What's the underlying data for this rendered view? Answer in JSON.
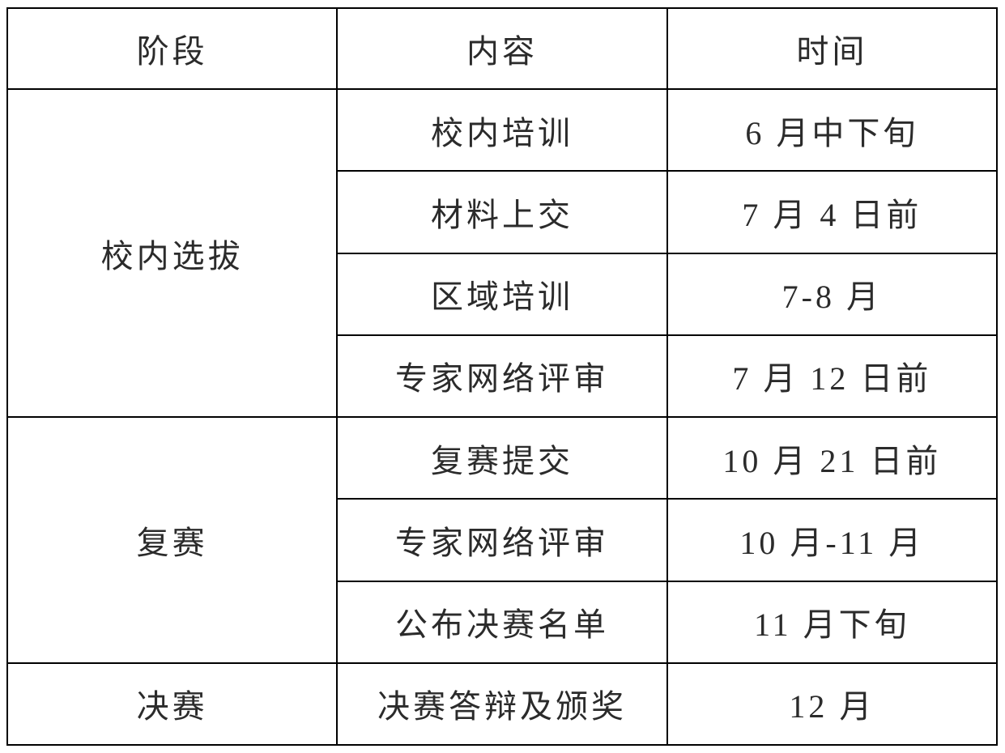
{
  "table": {
    "headers": [
      {
        "label": "阶段"
      },
      {
        "label": "内容"
      },
      {
        "label": "时间"
      }
    ],
    "groups": [
      {
        "stage": "校内选拔",
        "rows": [
          {
            "content": "校内培训",
            "time": "6 月中下旬"
          },
          {
            "content": "材料上交",
            "time": "7 月 4 日前"
          },
          {
            "content": "区域培训",
            "time": "7-8 月"
          },
          {
            "content": "专家网络评审",
            "time": "7 月 12 日前"
          }
        ]
      },
      {
        "stage": "复赛",
        "rows": [
          {
            "content": "复赛提交",
            "time": "10 月 21 日前"
          },
          {
            "content": "专家网络评审",
            "time": "10 月-11 月"
          },
          {
            "content": "公布决赛名单",
            "time": "11 月下旬"
          }
        ]
      },
      {
        "stage": "决赛",
        "rows": [
          {
            "content": "决赛答辩及颁奖",
            "time": "12 月"
          }
        ]
      }
    ],
    "colors": {
      "border": "#000000",
      "text": "#2b2b2b",
      "background": "#ffffff"
    }
  }
}
